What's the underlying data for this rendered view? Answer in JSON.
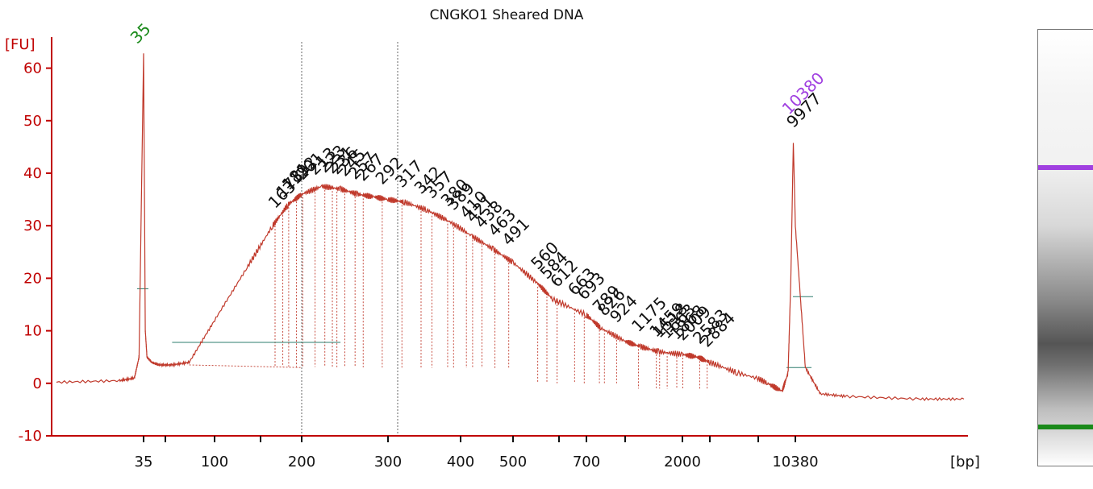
{
  "chart_data": {
    "type": "line",
    "title": "CNGKO1 Sheared DNA",
    "ylabel": "[FU]",
    "xlabel": "[bp]",
    "ylim": [
      -10,
      65
    ],
    "y_ticks": [
      -10,
      0,
      10,
      20,
      30,
      40,
      50,
      60
    ],
    "x_tick_labels": [
      "35",
      "100",
      "200",
      "300",
      "400",
      "500",
      "700",
      "2000",
      "10380"
    ],
    "markers": [
      {
        "label": "35",
        "color": "#1a8a1a"
      },
      {
        "label": "10380",
        "color": "#a040e0"
      }
    ],
    "peak_labels": [
      "163",
      "173",
      "181",
      "192",
      "201",
      "213",
      "223",
      "231",
      "236",
      "245",
      "257",
      "267",
      "292",
      "317",
      "342",
      "357",
      "380",
      "389",
      "410",
      "421",
      "438",
      "463",
      "491",
      "560",
      "584",
      "612",
      "663",
      "693",
      "789",
      "826",
      "924",
      "1175",
      "1459",
      "1518",
      "1663",
      "1868",
      "2009",
      "2583",
      "2884",
      "9977"
    ],
    "series": [
      {
        "color": "#c0392b",
        "x_bp": [
          20,
          30,
          33,
          34,
          35,
          36,
          37,
          40,
          45,
          55,
          70,
          100,
          130,
          160,
          180,
          200,
          220,
          240,
          260,
          280,
          300,
          320,
          350,
          380,
          420,
          460,
          500,
          560,
          600,
          700,
          800,
          1000,
          1200,
          1500,
          2000,
          2500,
          3000,
          4000,
          6000,
          8000,
          9000,
          9500,
          9977,
          10380,
          11000,
          12000,
          14000,
          20000,
          25000
        ],
        "fu": [
          0.2,
          0.5,
          1.0,
          5.0,
          63.0,
          10.0,
          5.0,
          4.0,
          3.5,
          3.5,
          4.0,
          12.0,
          22.0,
          30.0,
          34.0,
          36.0,
          37.5,
          37.0,
          36.0,
          35.5,
          35.0,
          34.5,
          33.0,
          31.0,
          28.0,
          25.5,
          23.0,
          19.0,
          16.0,
          13.0,
          10.5,
          8.0,
          7.0,
          6.0,
          5.5,
          5.0,
          4.0,
          2.0,
          0.0,
          -1.5,
          2.0,
          20.0,
          46.0,
          30.0,
          3.0,
          -2.0,
          -2.5,
          -3.0,
          -3.0
        ]
      }
    ]
  },
  "gel": {
    "upper_marker_color": "#a040e0",
    "lower_marker_color": "#1a8a1a"
  }
}
